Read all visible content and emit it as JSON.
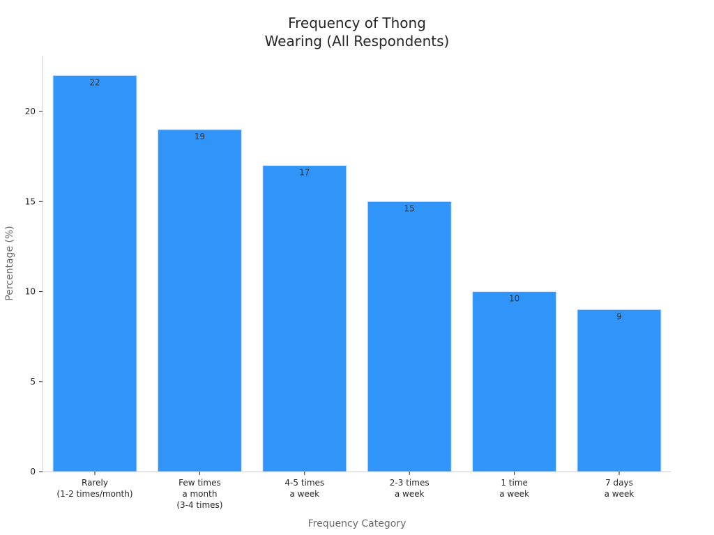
{
  "chart_data": {
    "type": "bar",
    "title": [
      "Frequency of Thong",
      "Wearing (All Respondents)"
    ],
    "xlabel": "Frequency Category",
    "ylabel": "Percentage (%)",
    "categories": [
      [
        "Rarely",
        "(1-2 times/month)"
      ],
      [
        "Few times",
        "a month",
        "(3-4 times)"
      ],
      [
        "4-5 times",
        "a week"
      ],
      [
        "2-3 times",
        "a week"
      ],
      [
        "1 time",
        "a week"
      ],
      [
        "7 days",
        "a week"
      ]
    ],
    "values": [
      22,
      19,
      17,
      15,
      10,
      9
    ],
    "ylim": [
      0,
      23.1
    ],
    "yticks": [
      0,
      5,
      10,
      15,
      20
    ],
    "grid": false,
    "legend": "none",
    "colors": {
      "bar": "#3194f8",
      "bar_edge": "#cfe4fb",
      "axis": "#cccccc",
      "tick_text": "#262626",
      "axis_title": "#6b6b6b",
      "value_label": "#333333"
    }
  }
}
